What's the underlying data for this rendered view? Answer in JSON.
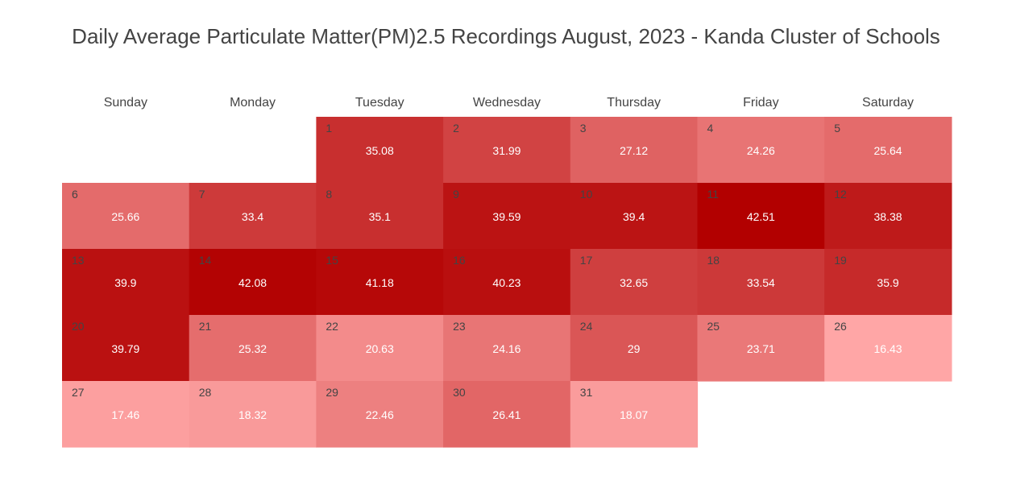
{
  "title": "Daily Average Particulate Matter(PM)2.5 Recordings August, 2023 - Kanda Cluster of Schools",
  "chart_data": {
    "type": "heatmap",
    "title": "Daily Average Particulate Matter(PM)2.5 Recordings August, 2023 - Kanda Cluster of Schools",
    "weekdays": [
      "Sunday",
      "Monday",
      "Tuesday",
      "Wednesday",
      "Thursday",
      "Friday",
      "Saturday"
    ],
    "month_start_weekday": 2,
    "days": [
      1,
      2,
      3,
      4,
      5,
      6,
      7,
      8,
      9,
      10,
      11,
      12,
      13,
      14,
      15,
      16,
      17,
      18,
      19,
      20,
      21,
      22,
      23,
      24,
      25,
      26,
      27,
      28,
      29,
      30,
      31
    ],
    "values": [
      35.08,
      31.99,
      27.12,
      24.26,
      25.64,
      25.66,
      33.4,
      35.1,
      39.59,
      39.4,
      42.51,
      38.38,
      39.9,
      42.08,
      41.18,
      40.23,
      32.65,
      33.54,
      35.9,
      39.79,
      25.32,
      20.63,
      24.16,
      29,
      23.71,
      16.43,
      17.46,
      18.32,
      22.46,
      26.41,
      18.07
    ],
    "color_scale": {
      "min_color": "#ffa6a6",
      "max_color": "#b20000"
    }
  }
}
